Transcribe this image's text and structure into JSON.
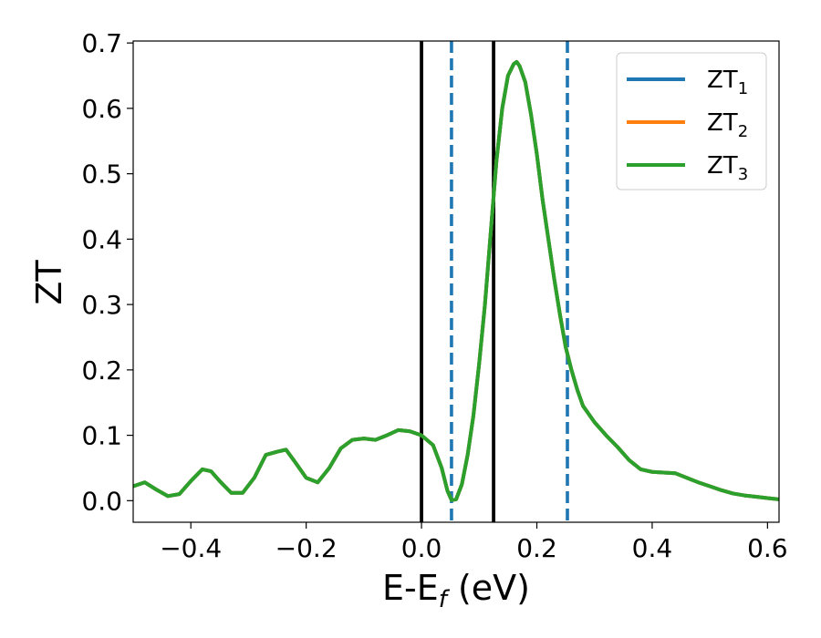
{
  "chart_data": {
    "type": "line",
    "xlabel": {
      "main": "E-E",
      "sub": "f",
      "tail": " (eV)"
    },
    "ylabel": "ZT",
    "xlim": [
      -0.5,
      0.62
    ],
    "ylim": [
      -0.033,
      0.703
    ],
    "xticks": [
      -0.4,
      -0.2,
      0.0,
      0.2,
      0.4,
      0.6
    ],
    "xtick_labels": [
      "−0.4",
      "−0.2",
      "0.0",
      "0.2",
      "0.4",
      "0.6"
    ],
    "yticks": [
      0.0,
      0.1,
      0.2,
      0.3,
      0.4,
      0.5,
      0.6,
      0.7
    ],
    "ytick_labels": [
      "0.0",
      "0.1",
      "0.2",
      "0.3",
      "0.4",
      "0.5",
      "0.6",
      "0.7"
    ],
    "grid": false,
    "legend_position": "top-right",
    "vlines": [
      {
        "x": 0.0,
        "style": "solid",
        "color": "#000000"
      },
      {
        "x": 0.125,
        "style": "solid",
        "color": "#000000"
      },
      {
        "x": 0.052,
        "style": "dashed",
        "color": "#1f77b4"
      },
      {
        "x": 0.253,
        "style": "dashed",
        "color": "#1f77b4"
      }
    ],
    "x": [
      -0.5,
      -0.48,
      -0.46,
      -0.44,
      -0.42,
      -0.4,
      -0.38,
      -0.365,
      -0.35,
      -0.33,
      -0.31,
      -0.29,
      -0.27,
      -0.25,
      -0.235,
      -0.22,
      -0.2,
      -0.18,
      -0.16,
      -0.14,
      -0.12,
      -0.1,
      -0.08,
      -0.06,
      -0.04,
      -0.02,
      0.0,
      0.02,
      0.035,
      0.045,
      0.052,
      0.06,
      0.07,
      0.08,
      0.09,
      0.1,
      0.11,
      0.12,
      0.13,
      0.14,
      0.15,
      0.16,
      0.165,
      0.17,
      0.18,
      0.19,
      0.2,
      0.21,
      0.22,
      0.23,
      0.24,
      0.25,
      0.26,
      0.27,
      0.28,
      0.3,
      0.32,
      0.34,
      0.36,
      0.38,
      0.4,
      0.42,
      0.44,
      0.46,
      0.48,
      0.5,
      0.52,
      0.54,
      0.56,
      0.58,
      0.6,
      0.62
    ],
    "series": [
      {
        "name_main": "ZT",
        "name_sub": "1",
        "color": "#1f77b4",
        "values": [
          0.022,
          0.028,
          0.017,
          0.007,
          0.01,
          0.03,
          0.048,
          0.045,
          0.03,
          0.012,
          0.012,
          0.035,
          0.07,
          0.075,
          0.078,
          0.06,
          0.035,
          0.028,
          0.05,
          0.08,
          0.093,
          0.095,
          0.093,
          0.1,
          0.108,
          0.106,
          0.1,
          0.085,
          0.05,
          0.015,
          0.001,
          0.002,
          0.025,
          0.07,
          0.13,
          0.21,
          0.3,
          0.41,
          0.52,
          0.6,
          0.65,
          0.668,
          0.671,
          0.665,
          0.64,
          0.59,
          0.53,
          0.46,
          0.4,
          0.34,
          0.285,
          0.235,
          0.2,
          0.17,
          0.145,
          0.12,
          0.1,
          0.082,
          0.062,
          0.048,
          0.044,
          0.043,
          0.042,
          0.035,
          0.028,
          0.022,
          0.016,
          0.011,
          0.008,
          0.006,
          0.004,
          0.002
        ]
      },
      {
        "name_main": "ZT",
        "name_sub": "2",
        "color": "#ff7f0e",
        "values": [
          0.022,
          0.028,
          0.017,
          0.007,
          0.01,
          0.03,
          0.048,
          0.045,
          0.03,
          0.012,
          0.012,
          0.035,
          0.07,
          0.075,
          0.078,
          0.06,
          0.035,
          0.028,
          0.05,
          0.08,
          0.093,
          0.095,
          0.093,
          0.1,
          0.108,
          0.106,
          0.1,
          0.085,
          0.05,
          0.015,
          0.001,
          0.002,
          0.025,
          0.07,
          0.13,
          0.21,
          0.3,
          0.41,
          0.52,
          0.6,
          0.65,
          0.668,
          0.671,
          0.665,
          0.64,
          0.59,
          0.53,
          0.46,
          0.4,
          0.34,
          0.285,
          0.235,
          0.2,
          0.17,
          0.145,
          0.12,
          0.1,
          0.082,
          0.062,
          0.048,
          0.044,
          0.043,
          0.042,
          0.035,
          0.028,
          0.022,
          0.016,
          0.011,
          0.008,
          0.006,
          0.004,
          0.002
        ]
      },
      {
        "name_main": "ZT",
        "name_sub": "3",
        "color": "#2ca02c",
        "values": [
          0.022,
          0.028,
          0.017,
          0.007,
          0.01,
          0.03,
          0.048,
          0.045,
          0.03,
          0.012,
          0.012,
          0.035,
          0.07,
          0.075,
          0.078,
          0.06,
          0.035,
          0.028,
          0.05,
          0.08,
          0.093,
          0.095,
          0.093,
          0.1,
          0.108,
          0.106,
          0.1,
          0.085,
          0.05,
          0.015,
          0.001,
          0.002,
          0.025,
          0.07,
          0.13,
          0.21,
          0.3,
          0.41,
          0.52,
          0.6,
          0.65,
          0.668,
          0.671,
          0.665,
          0.64,
          0.59,
          0.53,
          0.46,
          0.4,
          0.34,
          0.285,
          0.235,
          0.2,
          0.17,
          0.145,
          0.12,
          0.1,
          0.082,
          0.062,
          0.048,
          0.044,
          0.043,
          0.042,
          0.035,
          0.028,
          0.022,
          0.016,
          0.011,
          0.008,
          0.006,
          0.004,
          0.002
        ]
      }
    ]
  }
}
